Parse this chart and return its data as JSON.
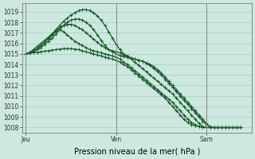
{
  "background_color": "#cce8e0",
  "grid_color": "#aaccbb",
  "line_color": "#1a5c2a",
  "marker_color": "#1a5c2a",
  "xlabel_text": "Pression niveau de la mer( hPa )",
  "xtick_labels": [
    "Jeu",
    "Ven",
    "Sam"
  ],
  "xtick_positions": [
    0,
    24,
    48
  ],
  "ylim": [
    1007.5,
    1019.8
  ],
  "xlim": [
    -1,
    60
  ],
  "yticks": [
    1008,
    1009,
    1010,
    1011,
    1012,
    1013,
    1014,
    1015,
    1016,
    1017,
    1018,
    1019
  ],
  "series": [
    {
      "x": [
        0,
        1,
        2,
        3,
        4,
        5,
        6,
        7,
        8,
        9,
        10,
        11,
        12,
        13,
        14,
        15,
        16,
        17,
        18,
        19,
        20,
        21,
        22,
        23,
        24,
        25,
        26,
        27,
        28,
        29,
        30,
        31,
        32,
        33,
        34,
        35,
        36,
        37,
        38,
        39,
        40,
        41,
        42,
        43,
        44,
        45,
        46,
        47,
        48,
        49,
        50,
        51,
        52,
        53,
        54,
        55,
        56,
        57
      ],
      "y": [
        1015.0,
        1015.05,
        1015.1,
        1015.15,
        1015.2,
        1015.25,
        1015.3,
        1015.35,
        1015.4,
        1015.45,
        1015.5,
        1015.5,
        1015.5,
        1015.45,
        1015.4,
        1015.3,
        1015.2,
        1015.1,
        1015.0,
        1014.9,
        1014.8,
        1014.7,
        1014.6,
        1014.5,
        1014.4,
        1014.2,
        1014.0,
        1013.8,
        1013.5,
        1013.2,
        1012.9,
        1012.6,
        1012.3,
        1012.0,
        1011.7,
        1011.4,
        1011.1,
        1010.8,
        1010.4,
        1010.0,
        1009.6,
        1009.2,
        1008.8,
        1008.5,
        1008.3,
        1008.2,
        1008.1,
        1008.05,
        1008.0,
        1008.0,
        1008.0,
        1008.0,
        1008.0,
        1008.0,
        1008.0,
        1008.0,
        1008.0,
        1008.0
      ]
    },
    {
      "x": [
        0,
        1,
        2,
        3,
        4,
        5,
        6,
        7,
        8,
        9,
        10,
        11,
        12,
        13,
        14,
        15,
        16,
        17,
        18,
        19,
        20,
        21,
        22,
        23,
        24,
        25,
        26,
        27,
        28,
        29,
        30,
        31,
        32,
        33,
        34,
        35,
        36,
        37,
        38,
        39,
        40,
        41,
        42,
        43,
        44,
        45,
        46,
        47,
        48,
        49,
        50,
        51,
        52,
        53,
        54,
        55,
        56,
        57
      ],
      "y": [
        1015.0,
        1015.1,
        1015.3,
        1015.5,
        1015.8,
        1016.1,
        1016.4,
        1016.8,
        1017.1,
        1017.3,
        1017.1,
        1016.8,
        1016.5,
        1016.2,
        1016.0,
        1015.8,
        1015.6,
        1015.4,
        1015.3,
        1015.2,
        1015.1,
        1015.0,
        1014.9,
        1014.8,
        1014.7,
        1014.5,
        1014.2,
        1014.0,
        1013.7,
        1013.4,
        1013.1,
        1012.8,
        1012.5,
        1012.2,
        1011.9,
        1011.6,
        1011.3,
        1011.0,
        1010.7,
        1010.4,
        1010.0,
        1009.6,
        1009.2,
        1008.8,
        1008.5,
        1008.3,
        1008.1,
        1008.0,
        1008.0,
        1008.0,
        1008.0,
        1008.0,
        1008.0,
        1008.0,
        1008.0,
        1008.0,
        1008.0,
        1008.0
      ]
    },
    {
      "x": [
        0,
        1,
        2,
        3,
        4,
        5,
        6,
        7,
        8,
        9,
        10,
        11,
        12,
        13,
        14,
        15,
        16,
        17,
        18,
        19,
        20,
        21,
        22,
        23,
        24,
        25,
        26,
        27,
        28,
        29,
        30,
        31,
        32,
        33,
        34,
        35,
        36,
        37,
        38,
        39,
        40,
        41,
        42,
        43,
        44,
        45,
        46,
        47,
        48,
        49,
        50,
        51,
        52,
        53,
        54,
        55,
        56,
        57
      ],
      "y": [
        1015.0,
        1015.15,
        1015.4,
        1015.7,
        1016.0,
        1016.3,
        1016.6,
        1016.9,
        1017.2,
        1017.5,
        1017.7,
        1017.8,
        1017.8,
        1017.7,
        1017.5,
        1017.3,
        1017.0,
        1016.7,
        1016.4,
        1016.1,
        1015.8,
        1015.6,
        1015.4,
        1015.3,
        1015.2,
        1015.1,
        1014.9,
        1014.7,
        1014.5,
        1014.2,
        1013.9,
        1013.6,
        1013.3,
        1013.0,
        1012.7,
        1012.4,
        1012.1,
        1011.8,
        1011.5,
        1011.2,
        1010.8,
        1010.4,
        1010.0,
        1009.6,
        1009.2,
        1008.8,
        1008.4,
        1008.1,
        1008.0,
        1008.0,
        1008.0,
        1008.0,
        1008.0,
        1008.0,
        1008.0,
        1008.0,
        1008.0,
        1008.0
      ]
    },
    {
      "x": [
        0,
        1,
        2,
        3,
        4,
        5,
        6,
        7,
        8,
        9,
        10,
        11,
        12,
        13,
        14,
        15,
        16,
        17,
        18,
        19,
        20,
        21,
        22,
        23,
        24,
        25,
        26,
        27,
        28,
        29,
        30,
        31,
        32,
        33,
        34,
        35,
        36,
        37,
        38,
        39,
        40,
        41,
        42,
        43,
        44,
        45,
        46,
        47,
        48,
        49,
        50,
        51,
        52,
        53,
        54,
        55,
        56,
        57
      ],
      "y": [
        1015.0,
        1015.1,
        1015.2,
        1015.4,
        1015.6,
        1015.9,
        1016.2,
        1016.5,
        1016.9,
        1017.3,
        1017.7,
        1018.0,
        1018.2,
        1018.3,
        1018.3,
        1018.2,
        1018.0,
        1017.7,
        1017.3,
        1016.8,
        1016.3,
        1015.8,
        1015.4,
        1015.2,
        1015.0,
        1014.85,
        1014.75,
        1014.65,
        1014.6,
        1014.5,
        1014.4,
        1014.3,
        1014.1,
        1013.9,
        1013.6,
        1013.3,
        1013.0,
        1012.6,
        1012.2,
        1011.8,
        1011.4,
        1011.0,
        1010.6,
        1010.2,
        1009.8,
        1009.4,
        1009.0,
        1008.6,
        1008.3,
        1008.1,
        1008.0,
        1008.0,
        1008.0,
        1008.0,
        1008.0,
        1008.0,
        1008.0,
        1008.0
      ]
    },
    {
      "x": [
        0,
        1,
        2,
        3,
        4,
        5,
        6,
        7,
        8,
        9,
        10,
        11,
        12,
        13,
        14,
        15,
        16,
        17,
        18,
        19,
        20,
        21,
        22,
        23,
        24,
        25,
        26,
        27,
        28,
        29,
        30,
        31,
        32,
        33,
        34,
        35,
        36,
        37,
        38,
        39,
        40,
        41,
        42,
        43,
        44,
        45,
        46,
        47,
        48,
        49,
        50,
        51,
        52,
        53,
        54,
        55,
        56,
        57
      ],
      "y": [
        1015.0,
        1015.1,
        1015.25,
        1015.5,
        1015.8,
        1016.1,
        1016.5,
        1016.9,
        1017.3,
        1017.7,
        1018.1,
        1018.4,
        1018.7,
        1018.9,
        1019.1,
        1019.2,
        1019.2,
        1019.1,
        1018.9,
        1018.6,
        1018.2,
        1017.7,
        1017.1,
        1016.5,
        1015.9,
        1015.4,
        1015.0,
        1014.8,
        1014.6,
        1014.5,
        1014.4,
        1014.3,
        1014.15,
        1014.0,
        1013.8,
        1013.5,
        1013.2,
        1012.8,
        1012.4,
        1012.0,
        1011.6,
        1011.2,
        1010.8,
        1010.4,
        1010.0,
        1009.6,
        1009.2,
        1008.8,
        1008.4,
        1008.0,
        1008.0,
        1008.0,
        1008.0,
        1008.0,
        1008.0,
        1008.0,
        1008.0,
        1008.0
      ]
    }
  ],
  "vline_color": "#888888",
  "vline_positions": [
    0,
    24,
    48
  ],
  "marker_size": 2.5,
  "linewidth": 0.9,
  "tick_fontsize": 5.5,
  "label_fontsize": 7
}
